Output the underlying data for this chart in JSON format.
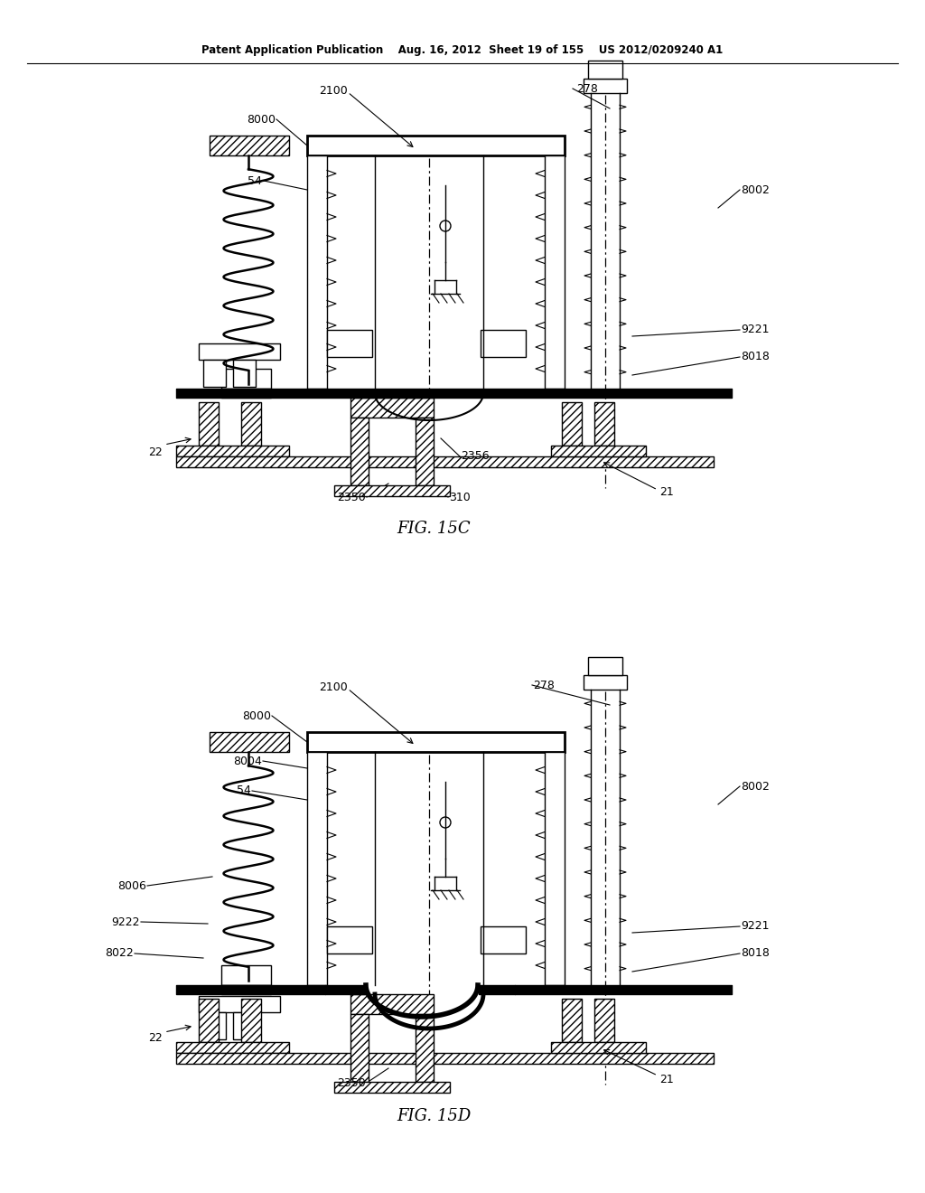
{
  "bg_color": "#ffffff",
  "header_text": "Patent Application Publication    Aug. 16, 2012  Sheet 19 of 155    US 2012/0209240 A1",
  "fig15c_label": "FIG. 15C",
  "fig15d_label": "FIG. 15D"
}
